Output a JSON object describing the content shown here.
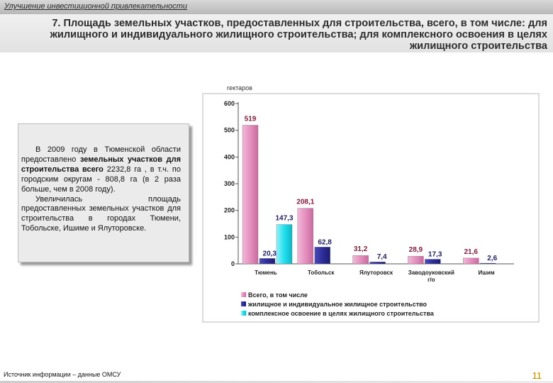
{
  "header": {
    "text": "Улучшение инвестиционной привлекательности"
  },
  "page_title": "7. Площадь земельных участков, предоставленных для строительства, всего, в том числе: для жилищного и индивидуального жилищного строительства; для комплексного освоения в целях жилищного строительства",
  "info": {
    "p1_pre": "В 2009 году в Тюменской области предоставлено ",
    "p1_bold": "земельных участков для строительства всего",
    "p1_post": " 2232,8 га , в т.ч. по городским округам - 808,8 га (в 2 раза больше, чем в 2008 году).",
    "p2": "Увеличилась площадь предоставленных земельных участков для строительства в городах Тюмени, Тобольске, Ишиме и Ялуторовске."
  },
  "source": "Источник информации – данные ОМСУ",
  "page_number": "11",
  "colors": {
    "total": "#e58fbf",
    "housing": "#2e2e9a",
    "complex": "#1fe0f0",
    "label": "#8b1a3a"
  },
  "chart_data": {
    "type": "bar",
    "unit_label": "гектаров",
    "categories": [
      "Тюмень",
      "Тобольск",
      "Ялуторовск",
      "Заводоуковский г/о",
      "Ишим"
    ],
    "series": [
      {
        "name": "Всего, в том числе",
        "values": [
          519,
          208.1,
          31.2,
          28.9,
          21.6
        ],
        "labels": [
          "519",
          "208,1",
          "31,2",
          "28,9",
          "21,6"
        ]
      },
      {
        "name": "жилищное и индивидуальное жилищное строительство",
        "values": [
          20.3,
          62.8,
          7.4,
          17.3,
          2.6
        ],
        "labels": [
          "20,3",
          "62,8",
          "7,4",
          "17,3",
          "2,6"
        ]
      },
      {
        "name": "комплексное освоение в целях жилищного строительства",
        "values": [
          147.3,
          null,
          null,
          null,
          null
        ],
        "labels": [
          "147,3",
          "",
          "",
          "",
          ""
        ]
      }
    ],
    "ylim": [
      0,
      600
    ],
    "yticks": [
      0,
      100,
      200,
      300,
      400,
      500,
      600
    ],
    "legend_position": "bottom",
    "grid": true
  }
}
